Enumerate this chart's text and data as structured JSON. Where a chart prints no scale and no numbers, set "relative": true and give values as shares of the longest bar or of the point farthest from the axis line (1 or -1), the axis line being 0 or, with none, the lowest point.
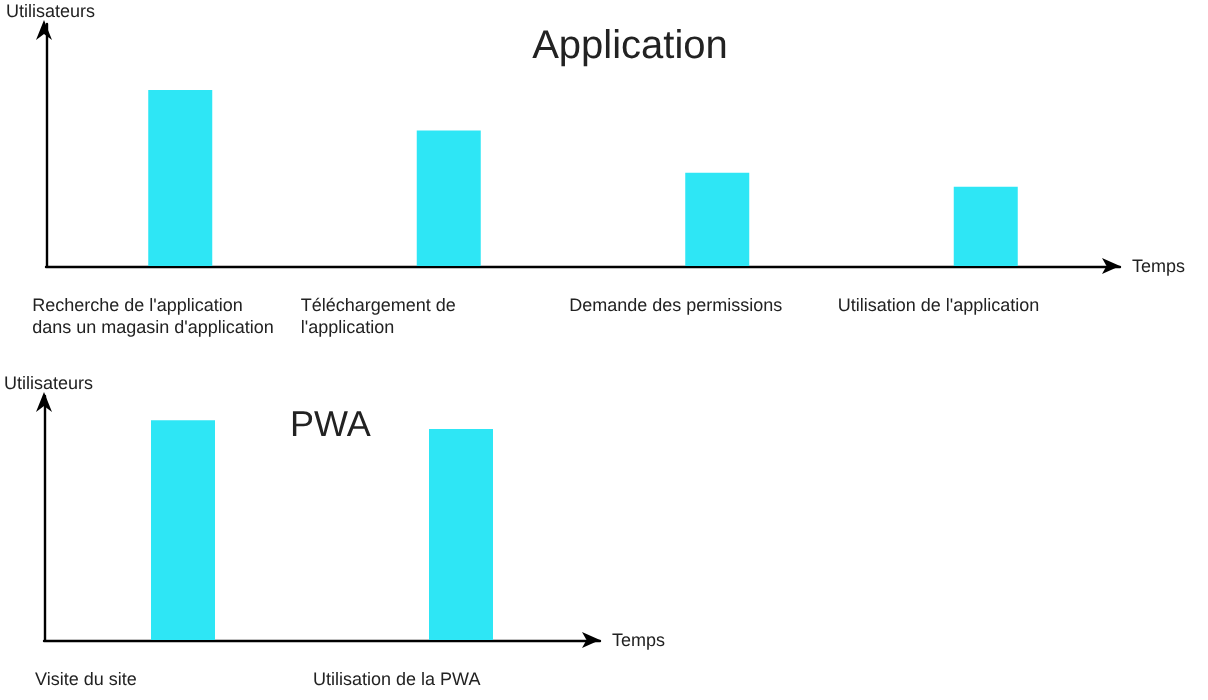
{
  "chart_data": [
    {
      "type": "bar",
      "title": "Application",
      "ylabel": "Utilisateurs",
      "xlabel": "Temps",
      "relative": true,
      "color": "#2ee6f5",
      "grid": false,
      "categories": [
        "Recherche de l'application dans un magasin d'application",
        "Téléchargement de l'application",
        "Demande des permissions",
        "Utilisation de l'application"
      ],
      "values": [
        1,
        0.77,
        0.53,
        0.45
      ]
    },
    {
      "type": "bar",
      "title": "PWA",
      "ylabel": "Utilisateurs",
      "xlabel": "Temps",
      "relative": true,
      "color": "#2ee6f5",
      "grid": false,
      "categories": [
        "Visite du site",
        "Utilisation de la PWA"
      ],
      "values": [
        1,
        0.96
      ]
    }
  ]
}
